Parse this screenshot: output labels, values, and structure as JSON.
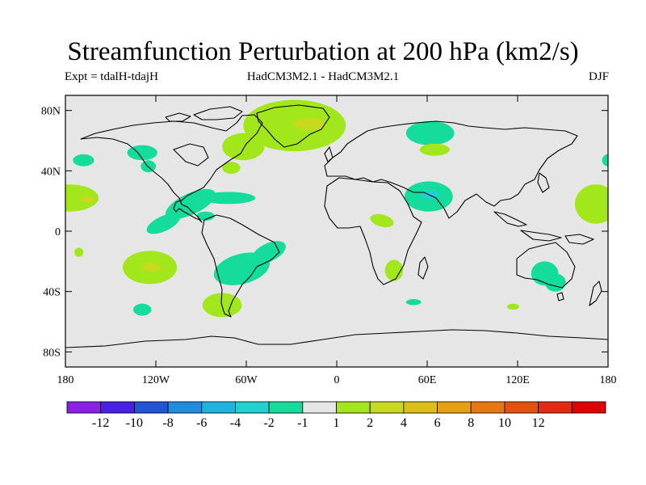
{
  "header": {
    "title": "Streamfunction Perturbation at 200 hPa (km2/s)",
    "left": "Expt = tdalH-tdajH",
    "center": "HadCM3M2.1 - HadCM3M2.1",
    "right": "DJF"
  },
  "chart_data": {
    "type": "heatmap",
    "title": "Streamfunction Perturbation at 200 hPa (km2/s)",
    "units": "km2/s",
    "season": "DJF",
    "xlim": [
      -180,
      180
    ],
    "ylim": [
      -90,
      90
    ],
    "x_ticks": [
      {
        "value": -180,
        "label": "180"
      },
      {
        "value": -120,
        "label": "120W"
      },
      {
        "value": -60,
        "label": "60W"
      },
      {
        "value": 0,
        "label": "0"
      },
      {
        "value": 60,
        "label": "60E"
      },
      {
        "value": 120,
        "label": "120E"
      },
      {
        "value": 180,
        "label": "180"
      }
    ],
    "y_ticks": [
      {
        "value": 80,
        "label": "80N"
      },
      {
        "value": 40,
        "label": "40N"
      },
      {
        "value": 0,
        "label": "0"
      },
      {
        "value": -40,
        "label": "40S"
      },
      {
        "value": -80,
        "label": "80S"
      }
    ],
    "colorbar": {
      "colors": [
        "#8c1fe6",
        "#4a1fe6",
        "#1f55d6",
        "#1f8ce0",
        "#1fb4e0",
        "#1fd2d2",
        "#14dc9c",
        "#e6e6e6",
        "#a2e61c",
        "#c8d81c",
        "#dcbe14",
        "#e6a00f",
        "#e6780f",
        "#e6500f",
        "#e62814",
        "#e00000"
      ],
      "labels": [
        "-12",
        "-10",
        "-8",
        "-6",
        "-4",
        "-2",
        "-1",
        "1",
        "2",
        "4",
        "6",
        "8",
        "10",
        "12"
      ]
    },
    "features": [
      {
        "lon": -28,
        "lat": 70,
        "rx": 34,
        "ry": 17,
        "level": "1 to 2"
      },
      {
        "lon": -18,
        "lat": 71,
        "rx": 10,
        "ry": 4,
        "level": "2 to 4"
      },
      {
        "lon": -62,
        "lat": 56,
        "rx": 14,
        "ry": 9,
        "level": "1 to 2"
      },
      {
        "lon": -70,
        "lat": 42,
        "rx": 6,
        "ry": 4,
        "level": "1 to 2"
      },
      {
        "lon": 62,
        "lat": 65,
        "rx": 16,
        "ry": 8,
        "level": "-1 to -2"
      },
      {
        "lon": -168,
        "lat": 47,
        "rx": 7,
        "ry": 4,
        "level": "-1 to -2"
      },
      {
        "lon": -129,
        "lat": 52,
        "rx": 10,
        "ry": 5,
        "level": "-1 to -2"
      },
      {
        "lon": -125,
        "lat": 43,
        "rx": 5,
        "ry": 4,
        "level": "-1 to -2"
      },
      {
        "lon": -178,
        "lat": 22,
        "rx": 20,
        "ry": 9,
        "level": "1 to 2"
      },
      {
        "lon": -165,
        "lat": 21,
        "rx": 5,
        "ry": 2,
        "level": "2 to 4"
      },
      {
        "lon": -97,
        "lat": 18,
        "rx": 18,
        "ry": 7,
        "level": "-1 to -2",
        "rot": -25
      },
      {
        "lon": -115,
        "lat": 5,
        "rx": 12,
        "ry": 5,
        "level": "-1 to -2",
        "rot": -25
      },
      {
        "lon": -72,
        "lat": 22,
        "rx": 18,
        "ry": 4,
        "level": "-1 to -2"
      },
      {
        "lon": -87,
        "lat": 10,
        "rx": 6,
        "ry": 3,
        "level": "-1 to -2"
      },
      {
        "lon": 65,
        "lat": 54,
        "rx": 10,
        "ry": 4,
        "level": "1 to 2"
      },
      {
        "lon": 61,
        "lat": 23,
        "rx": 16,
        "ry": 10,
        "level": "-1 to -2"
      },
      {
        "lon": 62,
        "lat": 24,
        "rx": 6,
        "ry": 3,
        "level": "-2 to -4"
      },
      {
        "lon": 172,
        "lat": 18,
        "rx": 14,
        "ry": 13,
        "level": "1 to 2"
      },
      {
        "lon": 180,
        "lat": 47,
        "rx": 4,
        "ry": 4,
        "level": "-1 to -2"
      },
      {
        "lon": 30,
        "lat": 7,
        "rx": 8,
        "ry": 4,
        "level": "1 to 2",
        "rot": 15
      },
      {
        "lon": -171,
        "lat": -14,
        "rx": 3,
        "ry": 3,
        "level": "1 to 2"
      },
      {
        "lon": -124,
        "lat": -24,
        "rx": 18,
        "ry": 11,
        "level": "1 to 2"
      },
      {
        "lon": -123,
        "lat": -24,
        "rx": 6,
        "ry": 3,
        "level": "2 to 4"
      },
      {
        "lon": -63,
        "lat": -25,
        "rx": 19,
        "ry": 10,
        "level": "-1 to -2",
        "rot": -15
      },
      {
        "lon": -45,
        "lat": -14,
        "rx": 12,
        "ry": 6,
        "level": "-1 to -2",
        "rot": -25
      },
      {
        "lon": -76,
        "lat": -49,
        "rx": 13,
        "ry": 8,
        "level": "1 to 2"
      },
      {
        "lon": -129,
        "lat": -52,
        "rx": 6,
        "ry": 4,
        "level": "-1 to -2"
      },
      {
        "lon": 38,
        "lat": -26,
        "rx": 6,
        "ry": 7,
        "level": "1 to 2"
      },
      {
        "lon": 51,
        "lat": -47,
        "rx": 5,
        "ry": 2,
        "level": "-1 to -2"
      },
      {
        "lon": 117,
        "lat": -50,
        "rx": 4,
        "ry": 2,
        "level": "1 to 2"
      },
      {
        "lon": 138,
        "lat": -28,
        "rx": 9,
        "ry": 8,
        "level": "-1 to -2"
      },
      {
        "lon": 145,
        "lat": -34,
        "rx": 7,
        "ry": 6,
        "level": "-1 to -2"
      }
    ]
  }
}
